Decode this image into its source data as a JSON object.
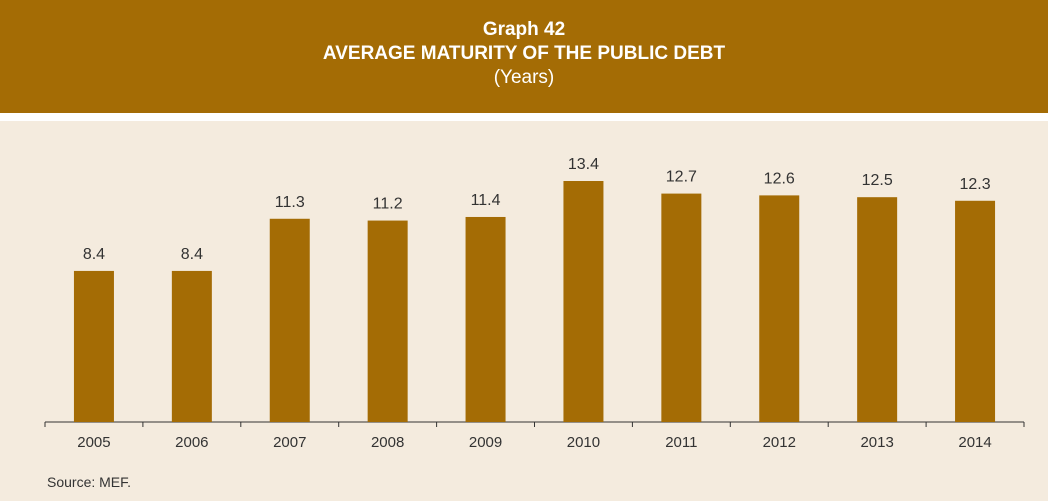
{
  "header": {
    "graph_number": "Graph 42",
    "title": "AVERAGE MATURITY OF THE PUBLIC DEBT",
    "unit": "(Years)"
  },
  "footer": {
    "source": "Source: MEF."
  },
  "colors": {
    "header_bg": "#a46c05",
    "panel_bg": "#f4ebde",
    "bar": "#a46c05",
    "axis": "#333333",
    "text": "#333333"
  },
  "chart_data": {
    "type": "bar",
    "title": "AVERAGE MATURITY OF THE PUBLIC DEBT",
    "subtitle": "(Years)",
    "xlabel": "",
    "ylabel": "",
    "categories": [
      "2005",
      "2006",
      "2007",
      "2008",
      "2009",
      "2010",
      "2011",
      "2012",
      "2013",
      "2014"
    ],
    "values": [
      8.4,
      8.4,
      11.3,
      11.2,
      11.4,
      13.4,
      12.7,
      12.6,
      12.5,
      12.3
    ],
    "data_labels": [
      "8.4",
      "8.4",
      "11.3",
      "11.2",
      "11.4",
      "13.4",
      "12.7",
      "12.6",
      "12.5",
      "12.3"
    ],
    "ylim": [
      0,
      13.4
    ],
    "grid": false,
    "legend": "none"
  }
}
